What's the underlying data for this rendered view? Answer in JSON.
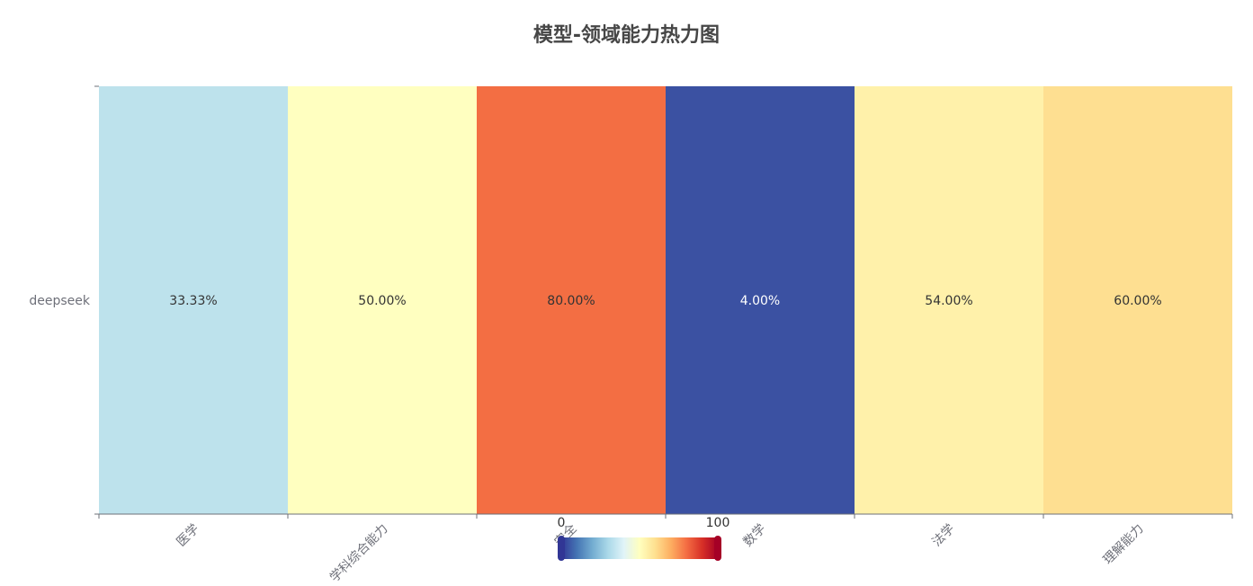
{
  "chart_data": {
    "type": "heatmap",
    "title": "模型-领域能力热力图",
    "x_categories": [
      "医学",
      "学科综合能力",
      "安全",
      "数学",
      "法学",
      "理解能力"
    ],
    "y_categories": [
      "deepseek"
    ],
    "values": [
      [
        33.33,
        50.0,
        80.0,
        4.0,
        54.0,
        60.0
      ]
    ],
    "cell_labels": [
      [
        "33.33%",
        "50.00%",
        "80.00%",
        "4.00%",
        "54.00%",
        "60.00%"
      ]
    ],
    "cell_colors": [
      [
        "#bde2ec",
        "#ffffc0",
        "#f36e43",
        "#3b51a2",
        "#fff1aa",
        "#fedf91"
      ]
    ],
    "cell_label_colors": [
      [
        "#333333",
        "#333333",
        "#333333",
        "#ffffff",
        "#333333",
        "#333333"
      ]
    ],
    "visual_map": {
      "min": 0,
      "max": 100,
      "min_label": "0",
      "max_label": "100",
      "colors": [
        "#313695",
        "#4575b4",
        "#74add1",
        "#abd9e9",
        "#e0f3f8",
        "#ffffbf",
        "#fee090",
        "#fdae61",
        "#f46d43",
        "#d73027",
        "#a50026"
      ],
      "orientation": "horizontal",
      "position": "bottom-center"
    },
    "xlabel": "",
    "ylabel": "",
    "grid": false
  }
}
